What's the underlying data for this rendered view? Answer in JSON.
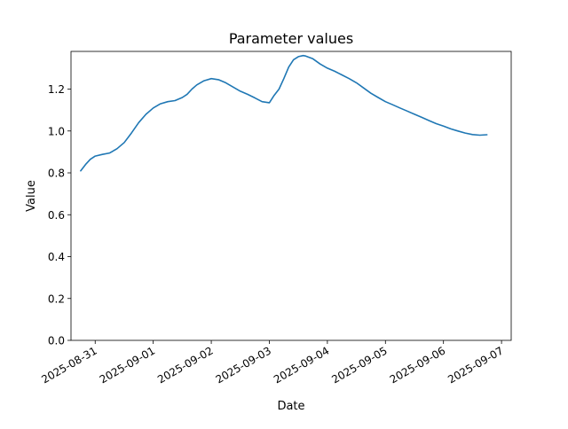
{
  "chart_data": {
    "type": "line",
    "title": "Parameter values",
    "xlabel": "Date",
    "ylabel": "Value",
    "ylim": [
      0,
      1.38
    ],
    "xlim": [
      "2025-08-30T14:00",
      "2025-09-07T04:00"
    ],
    "x_ticks": [
      "2025-08-31",
      "2025-09-01",
      "2025-09-02",
      "2025-09-03",
      "2025-09-04",
      "2025-09-05",
      "2025-09-06",
      "2025-09-07"
    ],
    "y_ticks": [
      "0.0",
      "0.2",
      "0.4",
      "0.6",
      "0.8",
      "1.0",
      "1.2"
    ],
    "grid": false,
    "legend": "none",
    "series": [
      {
        "color": "#1f77b4",
        "x": [
          "2025-08-30T18:00",
          "2025-08-30T20:00",
          "2025-08-30T22:00",
          "2025-08-31T00:00",
          "2025-08-31T03:00",
          "2025-08-31T06:00",
          "2025-08-31T09:00",
          "2025-08-31T12:00",
          "2025-08-31T15:00",
          "2025-08-31T18:00",
          "2025-08-31T21:00",
          "2025-09-01T00:00",
          "2025-09-01T03:00",
          "2025-09-01T06:00",
          "2025-09-01T09:00",
          "2025-09-01T12:00",
          "2025-09-01T14:00",
          "2025-09-01T16:00",
          "2025-09-01T18:00",
          "2025-09-01T21:00",
          "2025-09-02T00:00",
          "2025-09-02T03:00",
          "2025-09-02T06:00",
          "2025-09-02T09:00",
          "2025-09-02T12:00",
          "2025-09-02T15:00",
          "2025-09-02T18:00",
          "2025-09-02T21:00",
          "2025-09-03T00:00",
          "2025-09-03T02:00",
          "2025-09-03T04:00",
          "2025-09-03T06:00",
          "2025-09-03T08:00",
          "2025-09-03T10:00",
          "2025-09-03T12:00",
          "2025-09-03T14:00",
          "2025-09-03T15:00",
          "2025-09-03T18:00",
          "2025-09-03T21:00",
          "2025-09-04T00:00",
          "2025-09-04T03:00",
          "2025-09-04T06:00",
          "2025-09-04T09:00",
          "2025-09-04T12:00",
          "2025-09-04T15:00",
          "2025-09-04T18:00",
          "2025-09-04T21:00",
          "2025-09-05T00:00",
          "2025-09-05T03:00",
          "2025-09-05T06:00",
          "2025-09-05T09:00",
          "2025-09-05T12:00",
          "2025-09-05T15:00",
          "2025-09-05T18:00",
          "2025-09-05T21:00",
          "2025-09-06T00:00",
          "2025-09-06T03:00",
          "2025-09-06T06:00",
          "2025-09-06T09:00",
          "2025-09-06T12:00",
          "2025-09-06T15:00",
          "2025-09-06T18:00"
        ],
        "values": [
          0.81,
          0.84,
          0.865,
          0.88,
          0.888,
          0.895,
          0.915,
          0.945,
          0.99,
          1.04,
          1.08,
          1.11,
          1.13,
          1.14,
          1.145,
          1.16,
          1.175,
          1.2,
          1.22,
          1.24,
          1.25,
          1.245,
          1.23,
          1.21,
          1.19,
          1.175,
          1.158,
          1.14,
          1.135,
          1.17,
          1.2,
          1.25,
          1.305,
          1.34,
          1.355,
          1.36,
          1.358,
          1.345,
          1.32,
          1.3,
          1.285,
          1.268,
          1.25,
          1.23,
          1.205,
          1.18,
          1.16,
          1.14,
          1.125,
          1.11,
          1.095,
          1.08,
          1.065,
          1.05,
          1.035,
          1.023,
          1.01,
          1.0,
          0.99,
          0.983,
          0.98,
          0.982
        ]
      }
    ]
  }
}
